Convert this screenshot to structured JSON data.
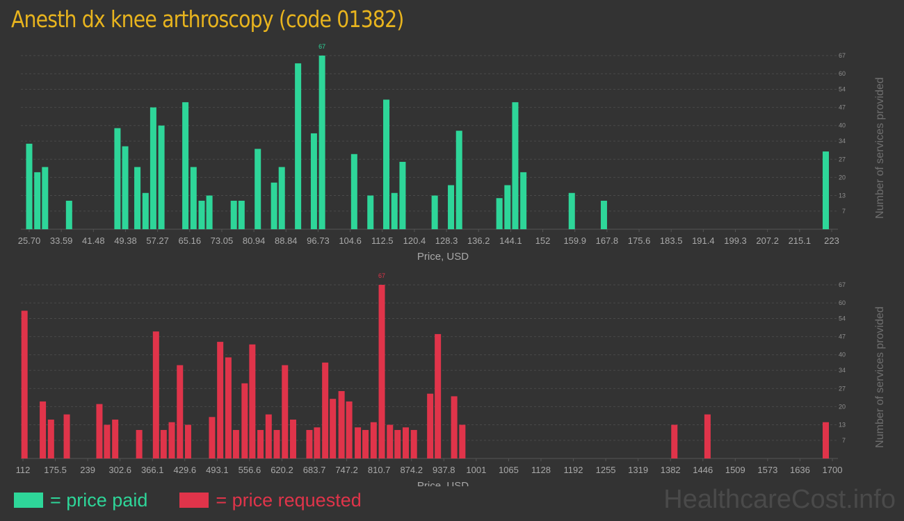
{
  "title": "Anesth dx knee arthroscopy (code 01382)",
  "legend": {
    "paid_label": "= price paid",
    "requested_label": "= price requested",
    "paid_color": "#2ed699",
    "requested_color": "#e0344a"
  },
  "watermark": "HealthcareCost.info",
  "chart_data": [
    {
      "type": "bar",
      "name": "price paid",
      "color": "#2ed699",
      "xlabel": "Price, USD",
      "ylabel": "Number of services provided",
      "ylim": [
        0,
        67
      ],
      "y_ticks": [
        "7",
        "13",
        "20",
        "27",
        "34",
        "40",
        "47",
        "54",
        "60",
        "67"
      ],
      "x_ticks": [
        "25.70",
        "33.59",
        "41.48",
        "49.38",
        "57.27",
        "65.16",
        "73.05",
        "80.94",
        "88.84",
        "96.73",
        "104.6",
        "112.5",
        "120.4",
        "128.3",
        "136.2",
        "144.1",
        "152",
        "159.9",
        "167.8",
        "175.6",
        "183.5",
        "191.4",
        "199.3",
        "207.2",
        "215.1",
        "223"
      ],
      "peak_label": "67",
      "bars": [
        {
          "x": 25.7,
          "y": 33
        },
        {
          "x": 27.7,
          "y": 22
        },
        {
          "x": 29.6,
          "y": 24
        },
        {
          "x": 35.5,
          "y": 11
        },
        {
          "x": 47.4,
          "y": 39
        },
        {
          "x": 49.3,
          "y": 32
        },
        {
          "x": 52.3,
          "y": 24
        },
        {
          "x": 54.3,
          "y": 14
        },
        {
          "x": 56.2,
          "y": 47
        },
        {
          "x": 58.2,
          "y": 40
        },
        {
          "x": 64.1,
          "y": 49
        },
        {
          "x": 66.1,
          "y": 24
        },
        {
          "x": 68.1,
          "y": 11
        },
        {
          "x": 70.0,
          "y": 13
        },
        {
          "x": 76.0,
          "y": 11
        },
        {
          "x": 77.9,
          "y": 11
        },
        {
          "x": 81.9,
          "y": 31
        },
        {
          "x": 85.9,
          "y": 18
        },
        {
          "x": 87.8,
          "y": 24
        },
        {
          "x": 91.8,
          "y": 64
        },
        {
          "x": 95.7,
          "y": 37
        },
        {
          "x": 97.7,
          "y": 67
        },
        {
          "x": 105.6,
          "y": 29
        },
        {
          "x": 109.6,
          "y": 13
        },
        {
          "x": 113.5,
          "y": 50
        },
        {
          "x": 115.5,
          "y": 14
        },
        {
          "x": 117.5,
          "y": 26
        },
        {
          "x": 125.4,
          "y": 13
        },
        {
          "x": 129.4,
          "y": 17
        },
        {
          "x": 131.4,
          "y": 38
        },
        {
          "x": 141.3,
          "y": 12
        },
        {
          "x": 143.3,
          "y": 17
        },
        {
          "x": 145.2,
          "y": 49
        },
        {
          "x": 147.2,
          "y": 22
        },
        {
          "x": 159.1,
          "y": 14
        },
        {
          "x": 167.0,
          "y": 11
        },
        {
          "x": 226.5,
          "y": 30
        }
      ]
    },
    {
      "type": "bar",
      "name": "price requested",
      "color": "#e0344a",
      "xlabel": "Price, USD",
      "ylabel": "Number of services provided",
      "ylim": [
        0,
        67
      ],
      "y_ticks": [
        "7",
        "13",
        "20",
        "27",
        "34",
        "40",
        "47",
        "54",
        "60",
        "67"
      ],
      "x_ticks": [
        "112",
        "175.5",
        "239",
        "302.6",
        "366.1",
        "429.6",
        "493.1",
        "556.6",
        "620.2",
        "683.7",
        "747.2",
        "810.7",
        "874.2",
        "937.8",
        "1001",
        "1065",
        "1128",
        "1192",
        "1255",
        "1319",
        "1382",
        "1446",
        "1509",
        "1573",
        "1636",
        "1700"
      ],
      "peak_label": "67",
      "bars": [
        {
          "x": 115,
          "y": 57
        },
        {
          "x": 151,
          "y": 22
        },
        {
          "x": 167,
          "y": 15
        },
        {
          "x": 198,
          "y": 17
        },
        {
          "x": 262,
          "y": 21
        },
        {
          "x": 277,
          "y": 13
        },
        {
          "x": 293,
          "y": 15
        },
        {
          "x": 340,
          "y": 11
        },
        {
          "x": 373,
          "y": 49
        },
        {
          "x": 388,
          "y": 11
        },
        {
          "x": 404,
          "y": 14
        },
        {
          "x": 420,
          "y": 36
        },
        {
          "x": 436,
          "y": 13
        },
        {
          "x": 483,
          "y": 16
        },
        {
          "x": 499,
          "y": 45
        },
        {
          "x": 515,
          "y": 39
        },
        {
          "x": 530,
          "y": 11
        },
        {
          "x": 547,
          "y": 29
        },
        {
          "x": 562,
          "y": 44
        },
        {
          "x": 578,
          "y": 11
        },
        {
          "x": 594,
          "y": 17
        },
        {
          "x": 610,
          "y": 11
        },
        {
          "x": 626,
          "y": 36
        },
        {
          "x": 642,
          "y": 15
        },
        {
          "x": 674,
          "y": 11
        },
        {
          "x": 689,
          "y": 12
        },
        {
          "x": 705,
          "y": 37
        },
        {
          "x": 720,
          "y": 23
        },
        {
          "x": 737,
          "y": 26
        },
        {
          "x": 752,
          "y": 22
        },
        {
          "x": 769,
          "y": 12
        },
        {
          "x": 784,
          "y": 11
        },
        {
          "x": 800,
          "y": 14
        },
        {
          "x": 816,
          "y": 67
        },
        {
          "x": 832,
          "y": 13
        },
        {
          "x": 847,
          "y": 11
        },
        {
          "x": 863,
          "y": 12
        },
        {
          "x": 879,
          "y": 11
        },
        {
          "x": 911,
          "y": 25
        },
        {
          "x": 926,
          "y": 48
        },
        {
          "x": 958,
          "y": 24
        },
        {
          "x": 974,
          "y": 13
        },
        {
          "x": 1390,
          "y": 13
        },
        {
          "x": 1455,
          "y": 17
        },
        {
          "x": 1689,
          "y": 14
        }
      ]
    }
  ]
}
